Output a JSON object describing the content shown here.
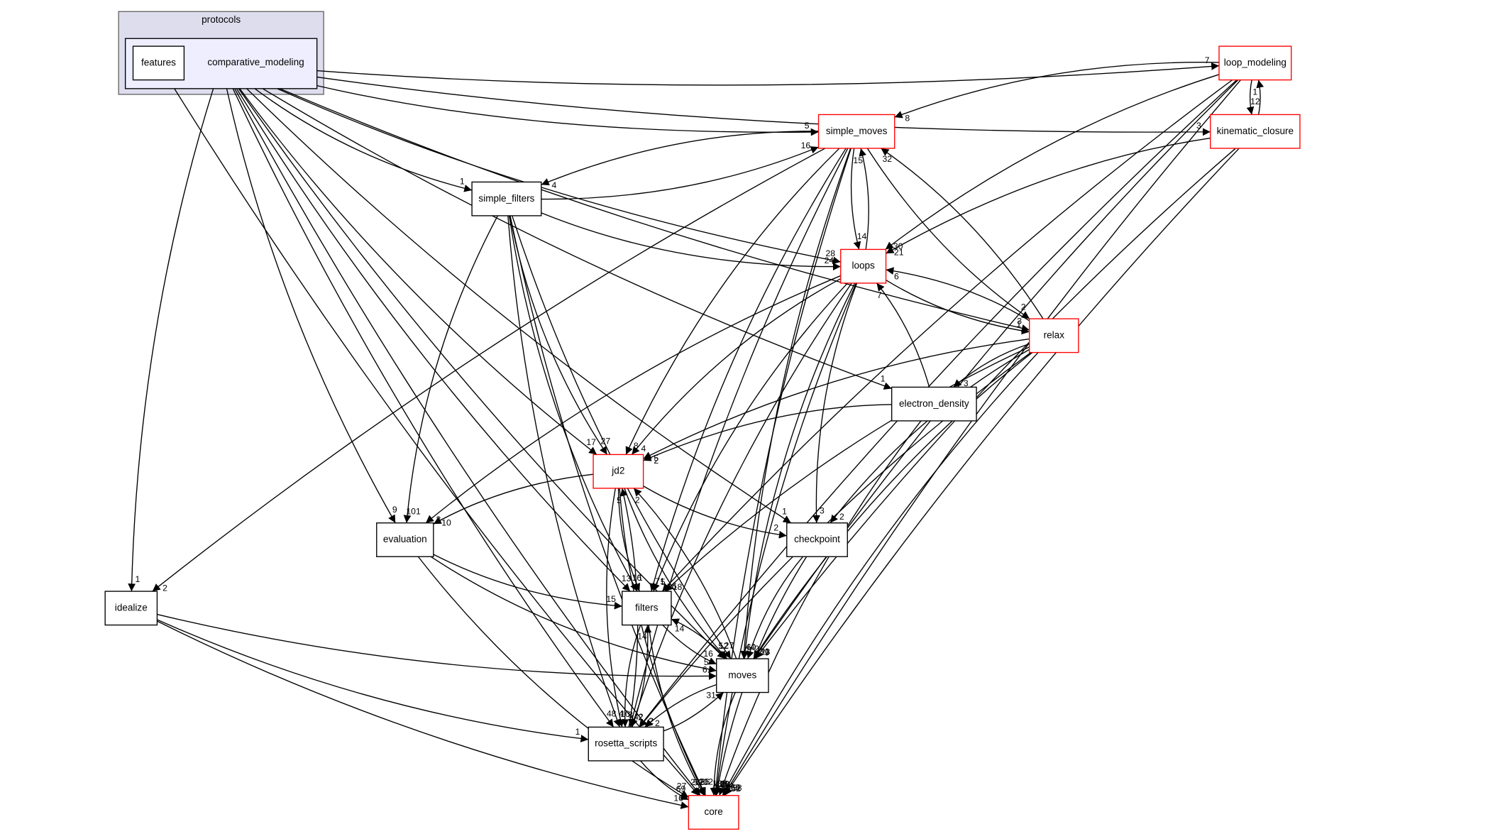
{
  "cluster": {
    "label": "protocols"
  },
  "nodes": [
    {
      "label": "comparative_modeling",
      "color": "#000000"
    },
    {
      "label": "features",
      "color": "#000000"
    },
    {
      "label": "loop_modeling",
      "color": "#ff0000"
    },
    {
      "label": "kinematic_closure",
      "color": "#ff0000"
    },
    {
      "label": "simple_moves",
      "color": "#ff0000"
    },
    {
      "label": "simple_filters",
      "color": "#000000"
    },
    {
      "label": "loops",
      "color": "#ff0000"
    },
    {
      "label": "relax",
      "color": "#ff0000"
    },
    {
      "label": "electron_density",
      "color": "#000000"
    },
    {
      "label": "jd2",
      "color": "#ff0000"
    },
    {
      "label": "evaluation",
      "color": "#000000"
    },
    {
      "label": "checkpoint",
      "color": "#000000"
    },
    {
      "label": "idealize",
      "color": "#000000"
    },
    {
      "label": "filters",
      "color": "#000000"
    },
    {
      "label": "moves",
      "color": "#000000"
    },
    {
      "label": "rosetta_scripts",
      "color": "#000000"
    },
    {
      "label": "core",
      "color": "#ff0000"
    }
  ],
  "edges": [
    {
      "from": "comparative_modeling",
      "to": "loop_modeling",
      "count": 7
    },
    {
      "from": "comparative_modeling",
      "to": "simple_moves",
      "count": 5
    },
    {
      "from": "comparative_modeling",
      "to": "kinematic_closure",
      "count": 3
    },
    {
      "from": "comparative_modeling",
      "to": "simple_filters",
      "count": 1
    },
    {
      "from": "comparative_modeling",
      "to": "loops",
      "count": 28
    },
    {
      "from": "comparative_modeling",
      "to": "relax",
      "count": 3
    },
    {
      "from": "comparative_modeling",
      "to": "electron_density",
      "count": 1
    },
    {
      "from": "comparative_modeling",
      "to": "jd2",
      "count": 17
    },
    {
      "from": "comparative_modeling",
      "to": "evaluation",
      "count": 9
    },
    {
      "from": "comparative_modeling",
      "to": "checkpoint",
      "count": 1
    },
    {
      "from": "comparative_modeling",
      "to": "idealize",
      "count": 1
    },
    {
      "from": "comparative_modeling",
      "to": "filters",
      "count": 13
    },
    {
      "from": "comparative_modeling",
      "to": "moves",
      "count": 5
    },
    {
      "from": "comparative_modeling",
      "to": "rosetta_scripts",
      "count": 48
    },
    {
      "from": "comparative_modeling",
      "to": "core",
      "count": 285
    },
    {
      "from": "features",
      "to": "core",
      "count": 5
    },
    {
      "from": "loop_modeling",
      "to": "kinematic_closure",
      "count": 12
    },
    {
      "from": "kinematic_closure",
      "to": "loop_modeling",
      "count": 1
    },
    {
      "from": "loop_modeling",
      "to": "simple_moves",
      "count": 8
    },
    {
      "from": "loop_modeling",
      "to": "loops",
      "count": 30
    },
    {
      "from": "loop_modeling",
      "to": "filters",
      "count": 5
    },
    {
      "from": "loop_modeling",
      "to": "moves",
      "count": 23
    },
    {
      "from": "loop_modeling",
      "to": "rosetta_scripts",
      "count": 2
    },
    {
      "from": "loop_modeling",
      "to": "core",
      "count": 158
    },
    {
      "from": "kinematic_closure",
      "to": "loops",
      "count": 21
    },
    {
      "from": "kinematic_closure",
      "to": "moves",
      "count": 9
    },
    {
      "from": "kinematic_closure",
      "to": "core",
      "count": 52
    },
    {
      "from": "simple_moves",
      "to": "simple_filters",
      "count": 4
    },
    {
      "from": "simple_filters",
      "to": "simple_moves",
      "count": 16
    },
    {
      "from": "simple_moves",
      "to": "loops",
      "count": 14
    },
    {
      "from": "loops",
      "to": "simple_moves",
      "count": 15
    },
    {
      "from": "simple_moves",
      "to": "relax",
      "count": 2
    },
    {
      "from": "relax",
      "to": "simple_moves",
      "count": 32
    },
    {
      "from": "simple_moves",
      "to": "jd2",
      "count": 8
    },
    {
      "from": "simple_moves",
      "to": "filters",
      "count": 71
    },
    {
      "from": "simple_moves",
      "to": "moves",
      "count": 44
    },
    {
      "from": "simple_moves",
      "to": "rosetta_scripts",
      "count": 42
    },
    {
      "from": "simple_moves",
      "to": "core",
      "count": 480
    },
    {
      "from": "simple_moves",
      "to": "idealize",
      "count": 2
    },
    {
      "from": "simple_filters",
      "to": "loops",
      "count": 24
    },
    {
      "from": "simple_filters",
      "to": "jd2",
      "count": 27
    },
    {
      "from": "simple_filters",
      "to": "evaluation",
      "count": 101
    },
    {
      "from": "simple_filters",
      "to": "filters",
      "count": 16
    },
    {
      "from": "simple_filters",
      "to": "moves",
      "count": 27
    },
    {
      "from": "simple_filters",
      "to": "rosetta_scripts",
      "count": 4
    },
    {
      "from": "simple_filters",
      "to": "core",
      "count": 212
    },
    {
      "from": "loops",
      "to": "relax",
      "count": 1
    },
    {
      "from": "relax",
      "to": "loops",
      "count": 6
    },
    {
      "from": "loops",
      "to": "jd2",
      "count": 4
    },
    {
      "from": "loops",
      "to": "evaluation",
      "count": 3
    },
    {
      "from": "loops",
      "to": "checkpoint",
      "count": 3
    },
    {
      "from": "loops",
      "to": "filters",
      "count": 5
    },
    {
      "from": "loops",
      "to": "moves",
      "count": 60
    },
    {
      "from": "loops",
      "to": "rosetta_scripts",
      "count": 2
    },
    {
      "from": "loops",
      "to": "core",
      "count": 139
    },
    {
      "from": "relax",
      "to": "electron_density",
      "count": 3
    },
    {
      "from": "relax",
      "to": "jd2",
      "count": 5
    },
    {
      "from": "relax",
      "to": "checkpoint",
      "count": 2
    },
    {
      "from": "relax",
      "to": "filters",
      "count": 18
    },
    {
      "from": "relax",
      "to": "moves",
      "count": 31
    },
    {
      "from": "relax",
      "to": "rosetta_scripts",
      "count": 2
    },
    {
      "from": "relax",
      "to": "core",
      "count": 169
    },
    {
      "from": "electron_density",
      "to": "loops",
      "count": 7
    },
    {
      "from": "electron_density",
      "to": "jd2",
      "count": 2
    },
    {
      "from": "electron_density",
      "to": "core",
      "count": 34
    },
    {
      "from": "jd2",
      "to": "evaluation",
      "count": 10
    },
    {
      "from": "jd2",
      "to": "checkpoint",
      "count": 2
    },
    {
      "from": "jd2",
      "to": "filters",
      "count": 1
    },
    {
      "from": "jd2",
      "to": "moves",
      "count": 12
    },
    {
      "from": "jd2",
      "to": "rosetta_scripts",
      "count": 10
    },
    {
      "from": "jd2",
      "to": "core",
      "count": 26
    },
    {
      "from": "moves",
      "to": "jd2",
      "count": 2
    },
    {
      "from": "rosetta_scripts",
      "to": "jd2",
      "count": 5
    },
    {
      "from": "evaluation",
      "to": "filters",
      "count": 15
    },
    {
      "from": "evaluation",
      "to": "moves",
      "count": 5
    },
    {
      "from": "evaluation",
      "to": "core",
      "count": 27
    },
    {
      "from": "checkpoint",
      "to": "moves",
      "count": 2
    },
    {
      "from": "checkpoint",
      "to": "core",
      "count": 11
    },
    {
      "from": "idealize",
      "to": "moves",
      "count": 6
    },
    {
      "from": "idealize",
      "to": "rosetta_scripts",
      "count": 1
    },
    {
      "from": "idealize",
      "to": "core",
      "count": 16
    },
    {
      "from": "filters",
      "to": "moves",
      "count": 16
    },
    {
      "from": "moves",
      "to": "filters",
      "count": 14
    },
    {
      "from": "filters",
      "to": "rosetta_scripts",
      "count": 3
    },
    {
      "from": "rosetta_scripts",
      "to": "filters",
      "count": 14
    },
    {
      "from": "filters",
      "to": "core",
      "count": 20
    },
    {
      "from": "moves",
      "to": "rosetta_scripts",
      "count": 2
    },
    {
      "from": "rosetta_scripts",
      "to": "moves",
      "count": 31
    },
    {
      "from": "moves",
      "to": "core",
      "count": 135
    },
    {
      "from": "rosetta_scripts",
      "to": "core",
      "count": 69
    }
  ]
}
